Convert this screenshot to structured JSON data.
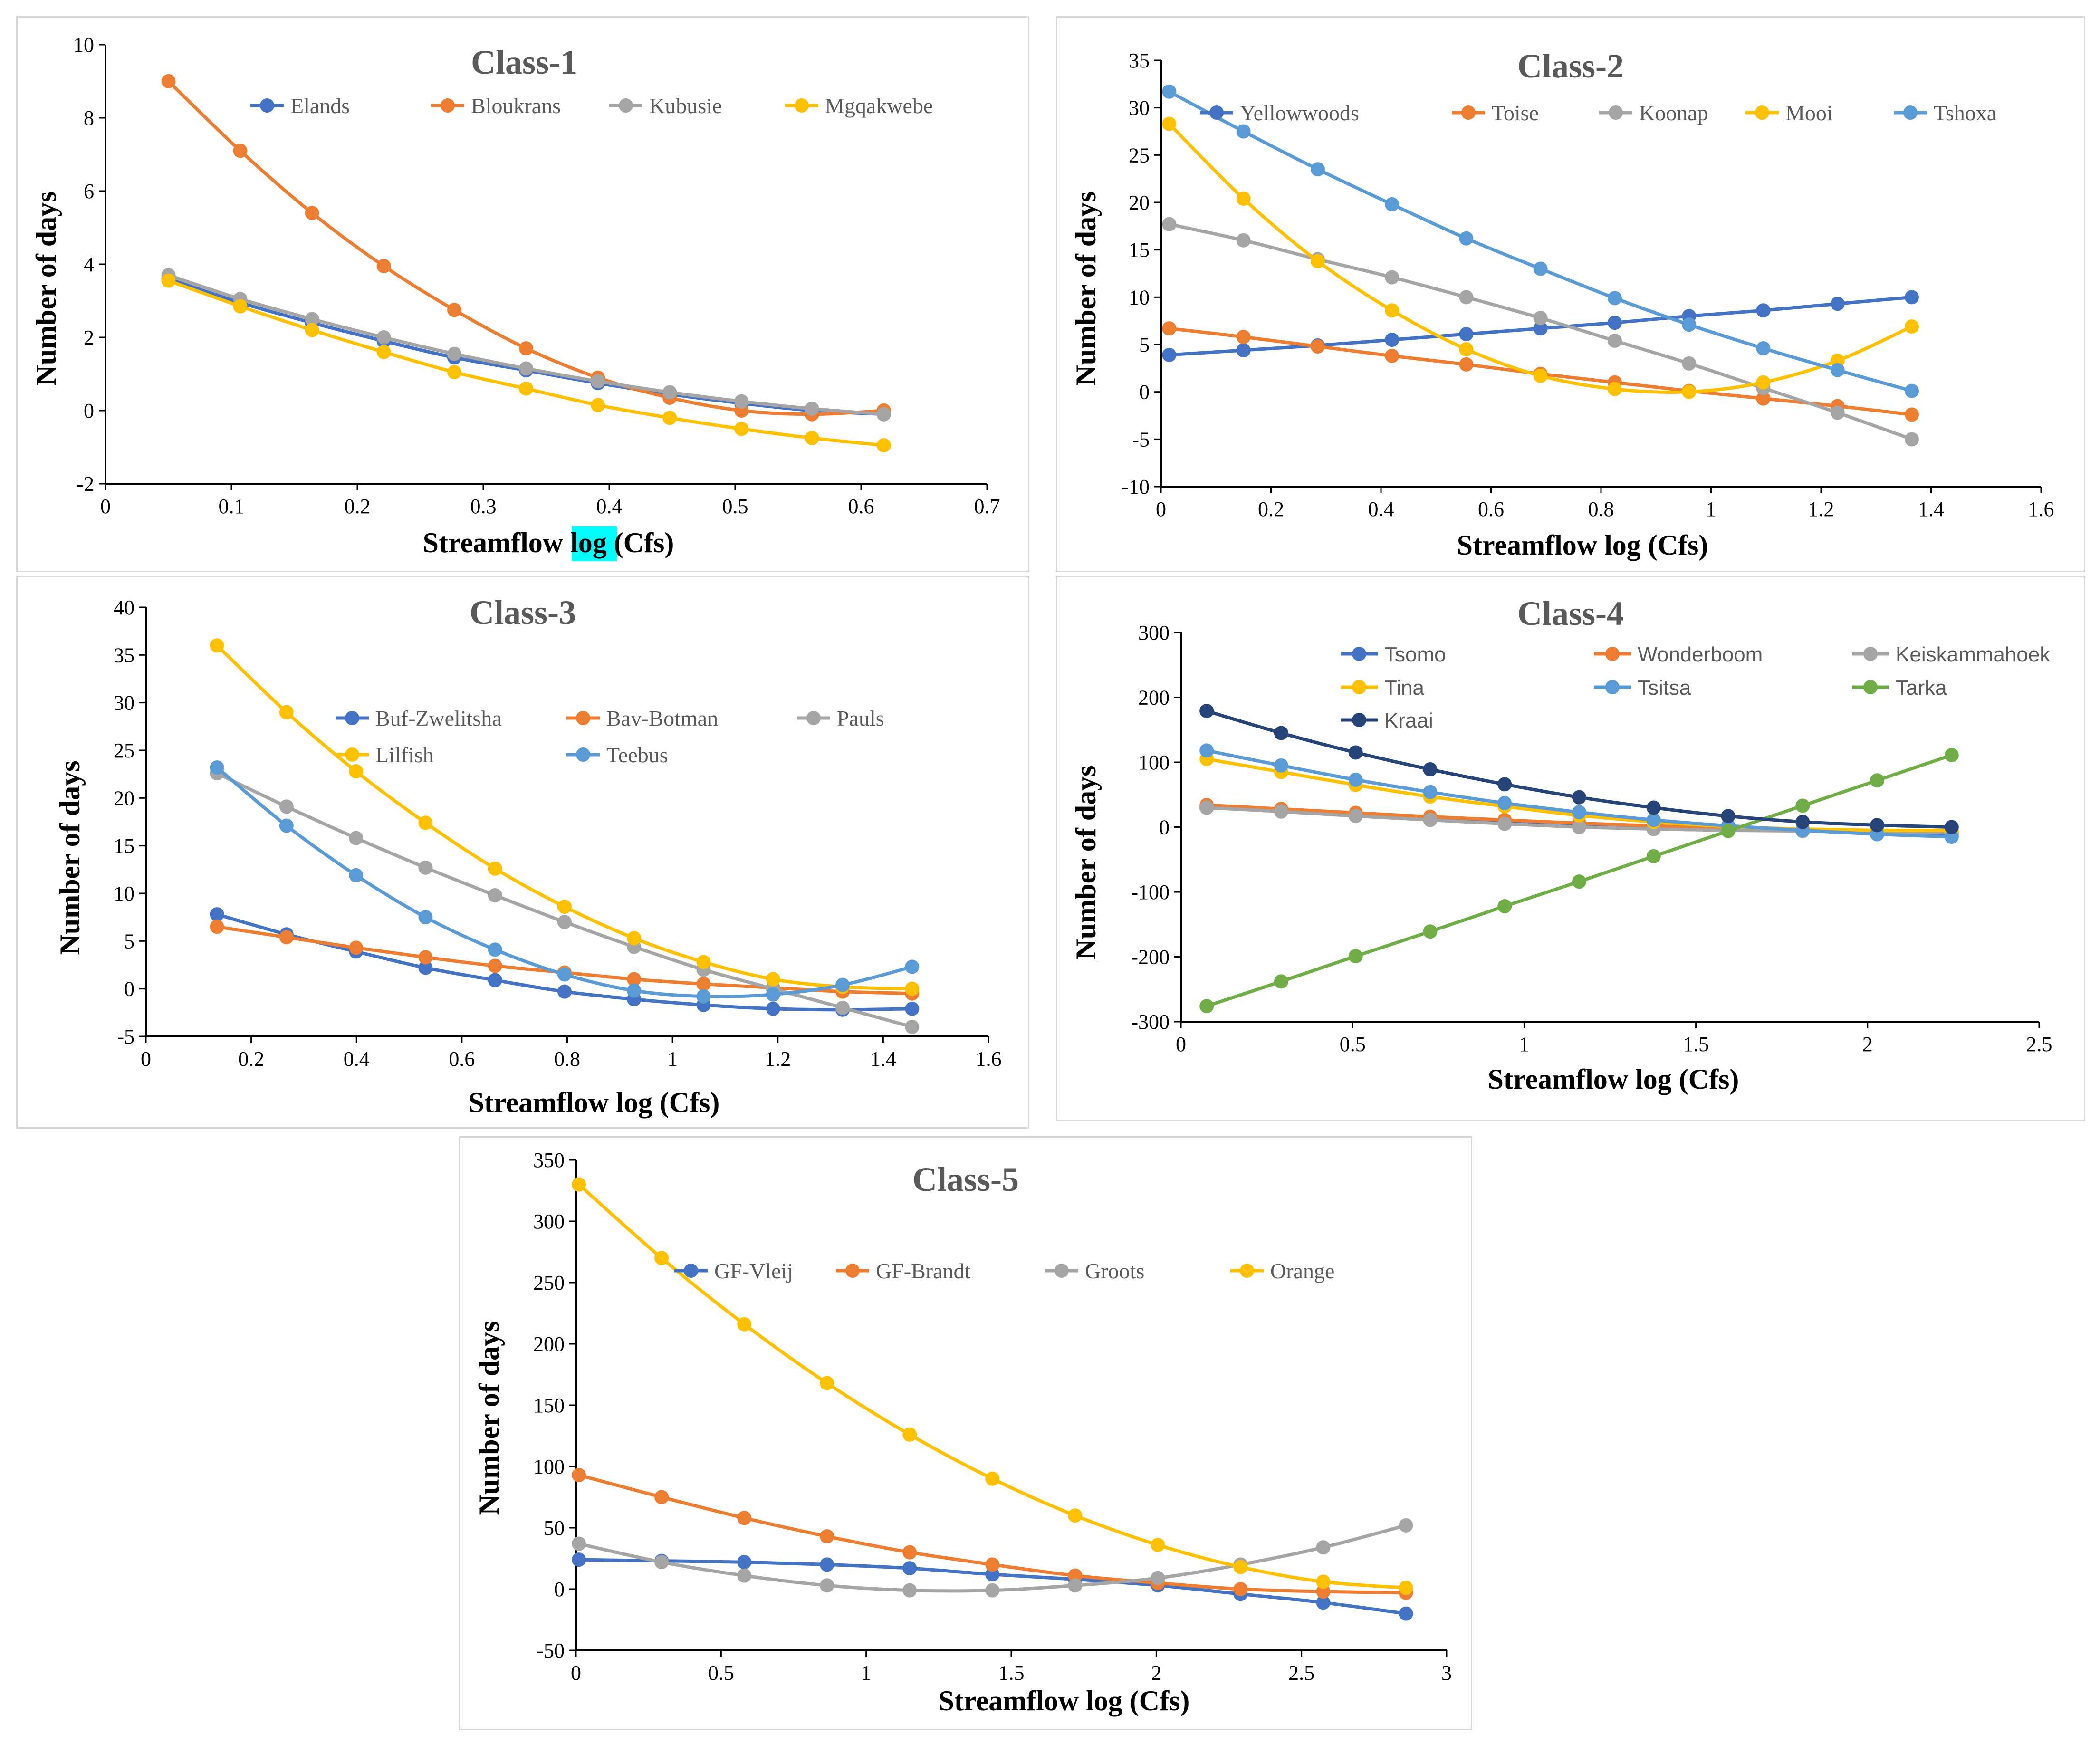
{
  "colors": {
    "blue": "#4472C4",
    "orange": "#ED7D31",
    "gray": "#A5A5A5",
    "gold": "#FFC000",
    "lightblue": "#5B9BD5",
    "green": "#70AD47",
    "navy": "#264478",
    "highlight": "#00FFFF"
  },
  "chart_data": [
    {
      "type": "line",
      "title": "Class-1",
      "xlabel_parts": [
        "Streamflow ",
        "log",
        " (Cfs)"
      ],
      "ylabel": "Number of days",
      "xlim": [
        0,
        0.7
      ],
      "ylim": [
        -2,
        10
      ],
      "xticks": [
        "0",
        "0.1",
        "0.2",
        "0.3",
        "0.4",
        "0.5",
        "0.6",
        "0.7"
      ],
      "yticks": [
        "-2",
        "0",
        "2",
        "4",
        "6",
        "8",
        "10"
      ],
      "x": [
        0.05,
        0.107,
        0.164,
        0.221,
        0.277,
        0.334,
        0.391,
        0.448,
        0.505,
        0.561,
        0.618
      ],
      "series": [
        {
          "name": "Elands",
          "color": "blue",
          "values": [
            3.6,
            2.95,
            2.4,
            1.9,
            1.45,
            1.1,
            0.75,
            0.45,
            0.2,
            0.0,
            -0.1
          ]
        },
        {
          "name": "Bloukrans",
          "color": "orange",
          "values": [
            9.0,
            7.1,
            5.4,
            3.95,
            2.75,
            1.7,
            0.9,
            0.35,
            0.0,
            -0.1,
            0.0
          ]
        },
        {
          "name": "Kubusie",
          "color": "gray",
          "values": [
            3.7,
            3.05,
            2.5,
            2.0,
            1.55,
            1.15,
            0.8,
            0.5,
            0.25,
            0.05,
            -0.1
          ]
        },
        {
          "name": "Mgqakwebe",
          "color": "gold",
          "values": [
            3.55,
            2.85,
            2.2,
            1.6,
            1.05,
            0.6,
            0.15,
            -0.2,
            -0.5,
            -0.75,
            -0.95
          ]
        }
      ]
    },
    {
      "type": "line",
      "title": "Class-2",
      "xlabel": "Streamflow log (Cfs)",
      "ylabel": "Number of days",
      "xlim": [
        0,
        1.6
      ],
      "ylim": [
        -10,
        35
      ],
      "xticks": [
        "0",
        "0.2",
        "0.4",
        "0.6",
        "0.8",
        "1",
        "1.2",
        "1.4",
        "1.6"
      ],
      "yticks": [
        "-10",
        "-5",
        "0",
        "5",
        "10",
        "15",
        "20",
        "25",
        "30",
        "35"
      ],
      "x": [
        0.015,
        0.15,
        0.285,
        0.42,
        0.555,
        0.69,
        0.825,
        0.96,
        1.095,
        1.23,
        1.365
      ],
      "series": [
        {
          "name": "Yellowwoods",
          "color": "blue",
          "values": [
            3.9,
            4.4,
            4.9,
            5.5,
            6.1,
            6.7,
            7.3,
            8.0,
            8.6,
            9.3,
            10.0
          ]
        },
        {
          "name": "Toise",
          "color": "orange",
          "values": [
            6.7,
            5.8,
            4.8,
            3.8,
            2.9,
            1.9,
            1.0,
            0.1,
            -0.7,
            -1.5,
            -2.4
          ]
        },
        {
          "name": "Koonap",
          "color": "gray",
          "values": [
            17.7,
            16.0,
            14.0,
            12.1,
            10.0,
            7.8,
            5.4,
            3.0,
            0.4,
            -2.2,
            -5.0
          ]
        },
        {
          "name": "Mooi",
          "color": "gold",
          "values": [
            28.3,
            20.4,
            13.8,
            8.6,
            4.5,
            1.7,
            0.3,
            0.0,
            1.0,
            3.3,
            6.9
          ]
        },
        {
          "name": "Tshoxa",
          "color": "lightblue",
          "values": [
            31.7,
            27.5,
            23.5,
            19.8,
            16.2,
            13.0,
            9.9,
            7.1,
            4.6,
            2.3,
            0.1
          ]
        }
      ]
    },
    {
      "type": "line",
      "title": "Class-3",
      "xlabel": "Streamflow log (Cfs)",
      "ylabel": "Number of days",
      "xlim": [
        0,
        1.6
      ],
      "ylim": [
        -5,
        40
      ],
      "xticks": [
        "0",
        "0.2",
        "0.4",
        "0.6",
        "0.8",
        "1",
        "1.2",
        "1.4",
        "1.6"
      ],
      "yticks": [
        "-5",
        "0",
        "5",
        "10",
        "15",
        "20",
        "25",
        "30",
        "35",
        "40"
      ],
      "x": [
        0.135,
        0.267,
        0.399,
        0.531,
        0.663,
        0.795,
        0.927,
        1.059,
        1.191,
        1.323,
        1.455
      ],
      "series": [
        {
          "name": "Buf-Zwelitsha",
          "color": "blue",
          "values": [
            7.8,
            5.7,
            3.9,
            2.2,
            0.9,
            -0.3,
            -1.1,
            -1.7,
            -2.1,
            -2.2,
            -2.1
          ]
        },
        {
          "name": "Bav-Botman",
          "color": "orange",
          "values": [
            6.5,
            5.4,
            4.3,
            3.3,
            2.4,
            1.7,
            1.0,
            0.5,
            0.1,
            -0.3,
            -0.5
          ]
        },
        {
          "name": "Pauls",
          "color": "gray",
          "values": [
            22.6,
            19.1,
            15.8,
            12.7,
            9.8,
            7.0,
            4.4,
            2.0,
            0.0,
            -2.0,
            -4.0
          ]
        },
        {
          "name": "Lilfish",
          "color": "gold",
          "values": [
            36.0,
            29.0,
            22.8,
            17.4,
            12.6,
            8.6,
            5.3,
            2.8,
            1.0,
            0.2,
            0.0
          ]
        },
        {
          "name": "Teebus",
          "color": "lightblue",
          "values": [
            23.2,
            17.1,
            11.9,
            7.5,
            4.1,
            1.5,
            -0.2,
            -0.8,
            -0.6,
            0.4,
            2.3
          ]
        }
      ]
    },
    {
      "type": "line",
      "title": "Class-4",
      "xlabel": "Streamflow log (Cfs)",
      "ylabel": "Number of days",
      "xlim": [
        0,
        2.5
      ],
      "ylim": [
        -300,
        300
      ],
      "xticks": [
        "0",
        "0.5",
        "1",
        "1.5",
        "2",
        "2.5"
      ],
      "yticks": [
        "-300",
        "-200",
        "-100",
        "0",
        "100",
        "200",
        "300"
      ],
      "x": [
        0.075,
        0.292,
        0.509,
        0.726,
        0.943,
        1.16,
        1.377,
        1.594,
        1.811,
        2.028,
        2.245
      ],
      "series": [
        {
          "name": "Tsomo",
          "color": "blue",
          "values": [
            30,
            25,
            20,
            15,
            10,
            5,
            0,
            -3,
            -6,
            -8,
            -10
          ]
        },
        {
          "name": "Wonderboom",
          "color": "orange",
          "values": [
            34,
            28,
            22,
            16,
            11,
            6,
            2,
            -2,
            -4,
            -6,
            -8
          ]
        },
        {
          "name": "Keiskammahoek",
          "color": "gray",
          "values": [
            30,
            24,
            17,
            11,
            5,
            0,
            -3,
            -5,
            -6,
            -7,
            -8
          ]
        },
        {
          "name": "Tina",
          "color": "gold",
          "values": [
            105,
            85,
            65,
            47,
            32,
            18,
            8,
            1,
            -3,
            -5,
            -5
          ]
        },
        {
          "name": "Tsitsa",
          "color": "lightblue",
          "values": [
            118,
            95,
            73,
            54,
            37,
            23,
            11,
            2,
            -5,
            -11,
            -15
          ]
        },
        {
          "name": "Tarka",
          "color": "green",
          "values": [
            -276,
            -238,
            -199,
            -161,
            -122,
            -84,
            -45,
            -6,
            33,
            72,
            111
          ]
        },
        {
          "name": "Kraai",
          "color": "navy",
          "values": [
            179,
            145,
            115,
            89,
            66,
            46,
            30,
            17,
            8,
            3,
            0
          ]
        }
      ]
    },
    {
      "type": "line",
      "title": "Class-5",
      "xlabel": "Streamflow log (Cfs)",
      "ylabel": "Number of days",
      "xlim": [
        0,
        3
      ],
      "ylim": [
        -50,
        350
      ],
      "xticks": [
        "0",
        "0.5",
        "1",
        "1.5",
        "2",
        "2.5",
        "3"
      ],
      "yticks": [
        "-50",
        "0",
        "50",
        "100",
        "150",
        "200",
        "250",
        "300",
        "350"
      ],
      "x": [
        0.01,
        0.295,
        0.58,
        0.865,
        1.15,
        1.435,
        1.72,
        2.005,
        2.29,
        2.575,
        2.86
      ],
      "series": [
        {
          "name": "GF-Vleij",
          "color": "blue",
          "values": [
            24,
            23,
            22,
            20,
            17,
            12,
            8,
            3,
            -4,
            -11,
            -20
          ]
        },
        {
          "name": "GF-Brandt",
          "color": "orange",
          "values": [
            93,
            75,
            58,
            43,
            30,
            20,
            11,
            5,
            0,
            -2,
            -3
          ]
        },
        {
          "name": "Groots",
          "color": "gray",
          "values": [
            37,
            22,
            11,
            3,
            -1,
            -1,
            3,
            9,
            20,
            34,
            52
          ]
        },
        {
          "name": "Orange",
          "color": "gold",
          "values": [
            330,
            270,
            216,
            168,
            126,
            90,
            60,
            36,
            18,
            6,
            1
          ]
        }
      ]
    }
  ]
}
